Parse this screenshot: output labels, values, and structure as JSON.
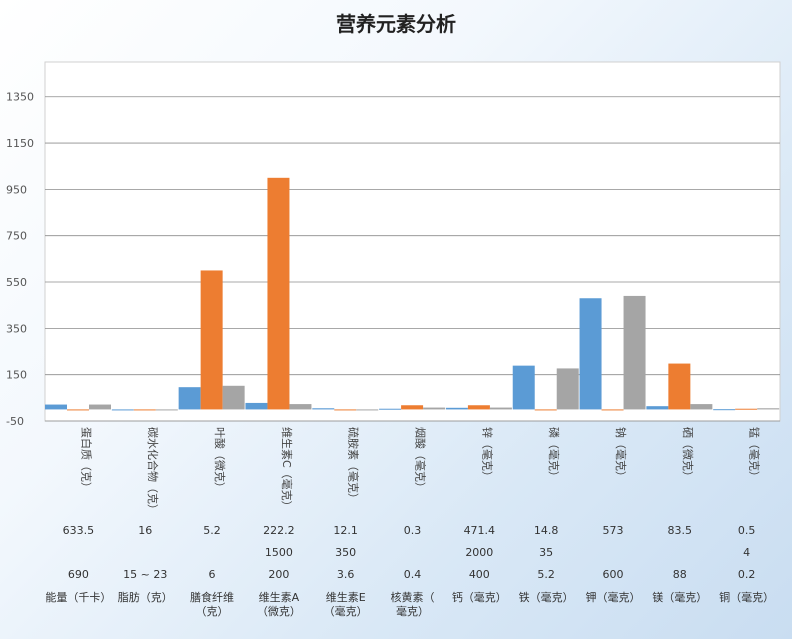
{
  "chart_data": {
    "type": "bar",
    "title": "营养元素分析",
    "ylim": [
      -50,
      1500
    ],
    "yticks": [
      -50,
      150,
      350,
      550,
      750,
      950,
      1150,
      1350
    ],
    "grid": true,
    "colors": [
      "#5b9bd5",
      "#ed7d31",
      "#a5a5a5"
    ],
    "categories": [
      "蛋白质（克）",
      "碳水化合物（克）",
      "叶酸（微克）",
      "维生素C（毫克）",
      "硫胺素（毫克）",
      "烟酸（毫克）",
      "锌（毫克）",
      "磷（毫克）",
      "钠（毫克）",
      "硒（微克）",
      "锰（毫克）"
    ],
    "series": [
      {
        "values": [
          21,
          0,
          96,
          28,
          5,
          3,
          7,
          189,
          480,
          14,
          1
        ]
      },
      {
        "values": [
          0,
          0,
          600,
          1000,
          0,
          18,
          18,
          0,
          0,
          198,
          3
        ]
      },
      {
        "values": [
          21,
          0,
          102,
          23,
          0,
          8,
          8,
          177,
          490,
          23,
          5
        ]
      }
    ]
  },
  "table": {
    "rows": [
      [
        "633.5",
        "16",
        "5.2",
        "222.2",
        "12.1",
        "0.3",
        "471.4",
        "14.8",
        "573",
        "83.5",
        "0.5"
      ],
      [
        "",
        "",
        "",
        "1500",
        "350",
        "",
        "2000",
        "35",
        "",
        "",
        "4"
      ],
      [
        "690",
        "15 ~ 23",
        "6",
        "200",
        "3.6",
        "0.4",
        "400",
        "5.2",
        "600",
        "88",
        "0.2"
      ]
    ],
    "labels": [
      "能量（千卡）",
      "脂肪（克）",
      "膳食纤维（克）",
      "维生素A（微克）",
      "维生素E（毫克）",
      "核黄素（毫克）",
      "钙（毫克）",
      "铁（毫克）",
      "钾（毫克）",
      "镁（毫克）",
      "铜（毫克）"
    ]
  }
}
